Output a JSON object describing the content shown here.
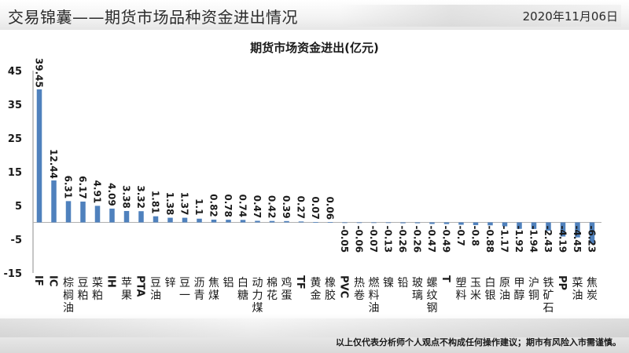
{
  "header": {
    "title": "交易锦囊——期货市场品种资金进出情况",
    "date": "2020年11月06日"
  },
  "footer": {
    "disclaimer": "以上仅代表分析师个人观点不构成任何操作建议；期市有风险入市需谨慎。"
  },
  "colors": {
    "bar": "#4f81bd",
    "axis": "#8c8c8c",
    "text": "#1a1a1a"
  },
  "chart_data": {
    "type": "bar",
    "title": "期货市场资金进出(亿元)",
    "xlabel": "",
    "ylabel": "",
    "ylim": [
      -15,
      45
    ],
    "yticks": [
      45,
      35,
      25,
      15,
      5,
      -5,
      -15
    ],
    "grid": false,
    "categories": [
      "IF",
      "IC",
      "棕榈油",
      "豆粕",
      "菜粕",
      "IH",
      "苹果",
      "PTA",
      "豆油",
      "锌",
      "豆一",
      "沥青",
      "焦煤",
      "铝",
      "白糖",
      "动力煤",
      "棉花",
      "鸡蛋",
      "TF",
      "黄金",
      "橡胶",
      "PVC",
      "热卷",
      "燃料油",
      "镍",
      "铅",
      "玻璃",
      "螺纹钢",
      "T",
      "塑料",
      "玉米",
      "白银",
      "原油",
      "甲醇",
      "沪铜",
      "铁矿石",
      "PP",
      "菜油",
      "焦炭"
    ],
    "values": [
      39.45,
      12.44,
      6.31,
      6.17,
      4.91,
      4.09,
      3.38,
      3.32,
      1.81,
      1.38,
      1.37,
      1.1,
      0.82,
      0.78,
      0.74,
      0.47,
      0.42,
      0.39,
      0.27,
      0.07,
      0.06,
      -0.05,
      -0.06,
      -0.07,
      -0.13,
      -0.26,
      -0.26,
      -0.47,
      -0.49,
      -0.7,
      -0.8,
      -0.88,
      -1.17,
      -1.92,
      -1.94,
      -2.43,
      -4.19,
      -4.45,
      -6.23
    ],
    "value_labels": [
      "39.45",
      "12.44",
      "6.31",
      "6.17",
      "4.91",
      "4.09",
      "3.38",
      "3.32",
      "1.81",
      "1.38",
      "1.37",
      "1.1",
      "0.82",
      "0.78",
      "0.74",
      "0.47",
      "0.42",
      "0.39",
      "0.27",
      "0.07",
      "0.06",
      "-0.05",
      "-0.06",
      "-0.07",
      "-0.13",
      "-0.26",
      "-0.26",
      "-0.47",
      "-0.49",
      "-0.7",
      "-0.8",
      "-0.88",
      "-1.17",
      "-1.92",
      "-1.94",
      "-2.43",
      "-4.19",
      "-4.45",
      "-6.23"
    ]
  }
}
